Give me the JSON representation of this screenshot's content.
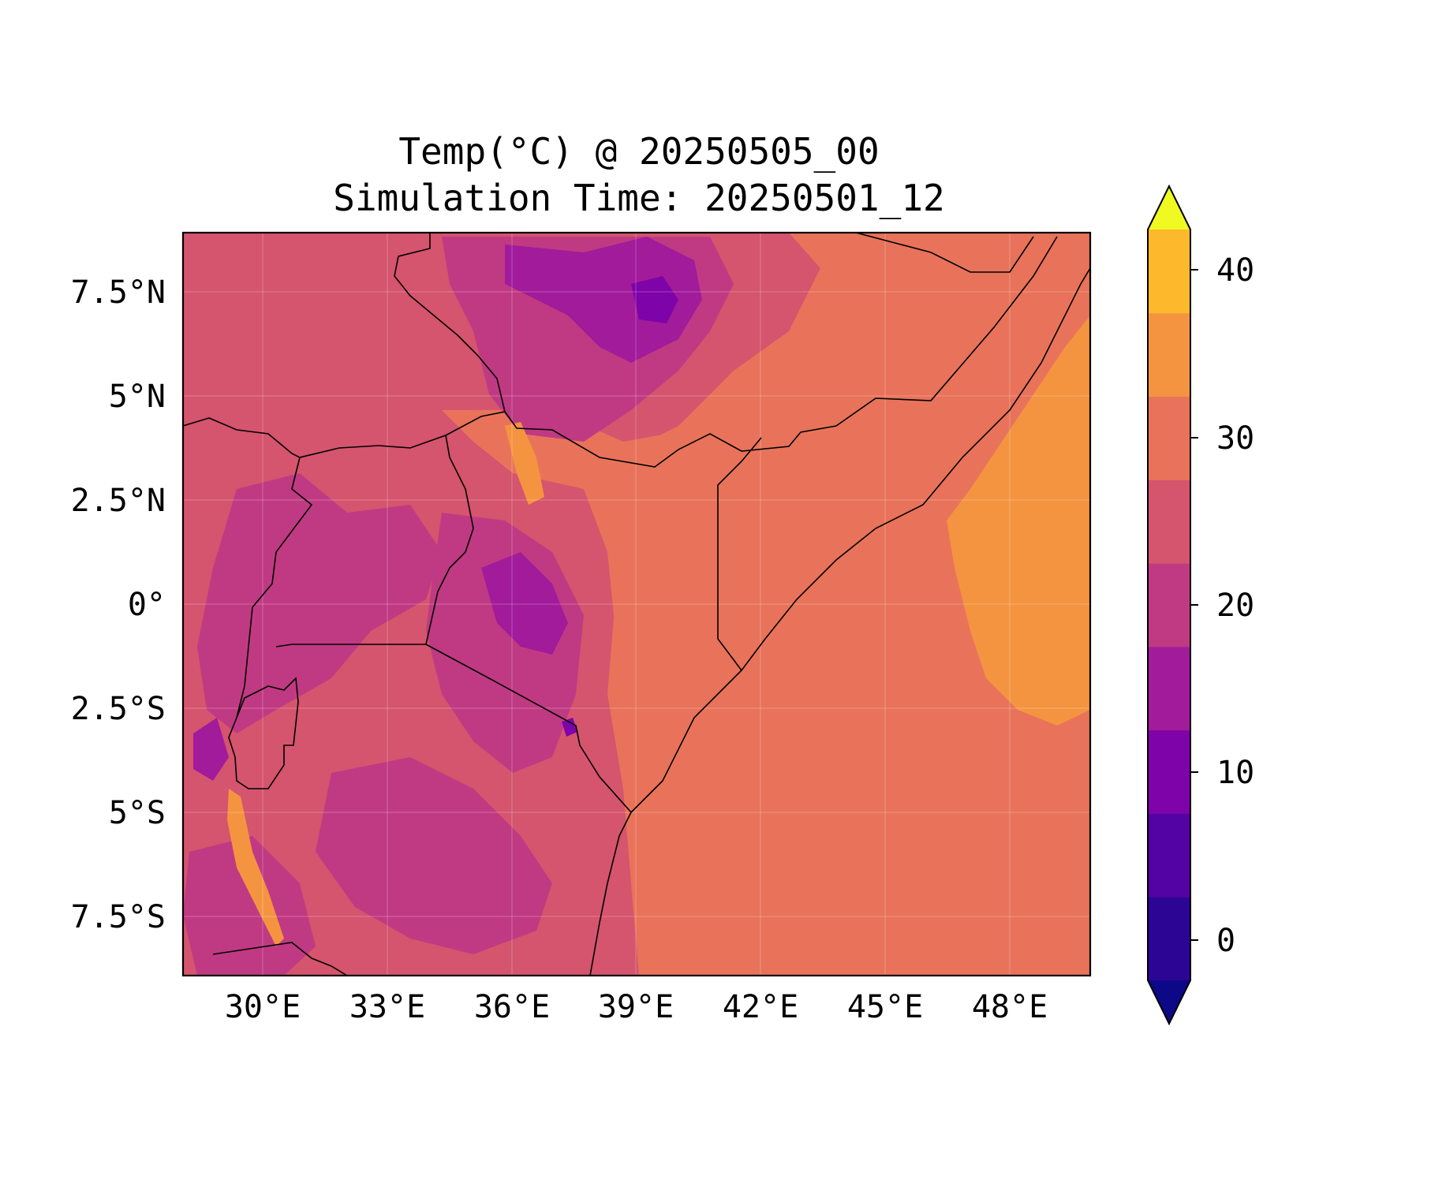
{
  "title": {
    "line1": "Temp(°C) @ 20250505_00",
    "line2": "Simulation Time: 20250501_12"
  },
  "map": {
    "lat_ticks": [
      "7.5°N",
      "5°N",
      "2.5°N",
      "0°",
      "2.5°S",
      "5°S",
      "7.5°S"
    ],
    "lon_ticks": [
      "30°E",
      "33°E",
      "36°E",
      "39°E",
      "42°E",
      "45°E",
      "48°E"
    ],
    "lon_range": [
      28.1,
      50.0
    ],
    "lat_range": [
      -8.9,
      8.9
    ],
    "gridlines": true
  },
  "colorbar": {
    "tick_labels": [
      "0",
      "10",
      "20",
      "30",
      "40"
    ],
    "levels": [
      -5,
      0,
      5,
      10,
      15,
      20,
      25,
      30,
      35,
      40,
      45
    ],
    "extend": "both",
    "colors": [
      "#0d0887",
      "#2d0594",
      "#5302a3",
      "#7e03a8",
      "#a11b9b",
      "#c03a83",
      "#d5546e",
      "#e8735a",
      "#f49441",
      "#feb82c",
      "#f0f921"
    ]
  }
}
